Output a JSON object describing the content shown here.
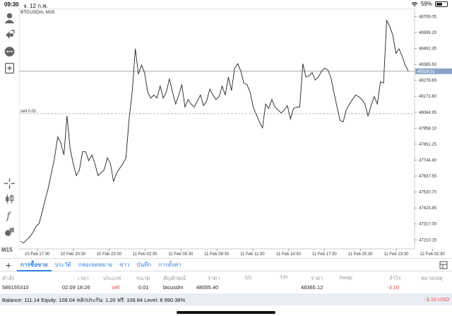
{
  "status": {
    "time": "09:30",
    "date": "จ. 12 ก.พ.",
    "battery": "59%",
    "battery_level": 0.59
  },
  "chart": {
    "symbol": "BTCUSDm, M15",
    "timeframe": "M15",
    "sell_line_label": "sell 0.01",
    "current_price": "48339.51",
    "colors": {
      "line": "#222222",
      "grid": "#eeeeee",
      "price_tag": "#8aa4c8",
      "level_line": "#bbbbbb"
    }
  },
  "chart_data": {
    "type": "line",
    "title": "",
    "ylim": [
      47150,
      48760
    ],
    "y_ticks": [
      "48706.05",
      "48599.20",
      "48492.35",
      "48385.50",
      "48278.65",
      "48171.80",
      "48064.95",
      "47958.10",
      "47851.25",
      "47744.40",
      "47637.55",
      "47530.70",
      "47423.85",
      "47317.00",
      "47210.15"
    ],
    "y_tick_values": [
      48706.05,
      48599.2,
      48492.35,
      48385.5,
      48278.65,
      48171.8,
      48064.95,
      47958.1,
      47851.25,
      47744.4,
      47637.55,
      47530.7,
      47423.85,
      47317.0,
      47210.15
    ],
    "x_ticks": [
      "10 Feb 17:30",
      "10 Feb 20:30",
      "10 Feb 23:30",
      "11 Feb 02:30",
      "11 Feb 05:30",
      "11 Feb 08:30",
      "11 Feb 11:30",
      "11 Feb 14:30",
      "11 Feb 17:30",
      "11 Feb 20:30",
      "11 Feb 23:30",
      "12 Feb 02:30"
    ],
    "current_price": 48339.51,
    "sell_level": 48055.4,
    "series": [
      {
        "values": [
          47200,
          47190,
          47210,
          47230,
          47260,
          47300,
          47320,
          47400,
          47480,
          47560,
          47660,
          47760,
          47900,
          47860,
          47780,
          48040,
          47820,
          47720,
          47640,
          47680,
          47800,
          47800,
          47740,
          47780,
          47720,
          47640,
          47660,
          47680,
          47760,
          47720,
          47600,
          47660,
          47690,
          47720,
          47760,
          48020,
          48200,
          48490,
          48320,
          48380,
          48330,
          48200,
          48160,
          48180,
          48160,
          48240,
          48160,
          48200,
          48290,
          48200,
          48120,
          48180,
          48250,
          48100,
          48150,
          48120,
          48100,
          48140,
          48180,
          48110,
          48140,
          48220,
          48180,
          48150,
          48170,
          48240,
          48180,
          48300,
          48210,
          48360,
          48390,
          48340,
          48260,
          48250,
          48200,
          48100,
          48050,
          48000,
          47960,
          48120,
          48090,
          48150,
          48100,
          48080,
          48060,
          48080,
          48110,
          48020,
          48090,
          48100,
          48100,
          48390,
          48300,
          48310,
          48330,
          48280,
          48300,
          48340,
          48360,
          48350,
          48300,
          48200,
          48100,
          48010,
          48000,
          48080,
          48120,
          48150,
          48180,
          48170,
          48150,
          48120,
          48040,
          48110,
          48170,
          48120,
          48270,
          48260,
          48680,
          48640,
          48580,
          48460,
          48490,
          48440,
          48380,
          48340
        ]
      }
    ]
  },
  "tabs": {
    "items": [
      "การซื้อขาย",
      "ประวัติ",
      "กล่องจดหมาย",
      "ข่าว",
      "บันทึก",
      "การตั้งค่า"
    ]
  },
  "table": {
    "headers": [
      "คำสั่ง",
      "เวลา",
      "ประเภท",
      "ขนาด",
      "สัญลักษณ์",
      "ราคา",
      "S/L",
      "T/P",
      "ราคา",
      "Swap",
      "กำไร",
      "หมายเหตุ"
    ],
    "rows": [
      {
        "order": "586155310",
        "time": "02.09 18:26",
        "type": "sell",
        "size": "0.01",
        "symbol": "btcusdm",
        "price": "48055.40",
        "sl": "",
        "tp": "",
        "cur_price": "48365.12",
        "swap": "",
        "profit": "-3.10",
        "comment": ""
      }
    ]
  },
  "balance": {
    "text": "Balance: 111.14 Equity: 108.04 หลักประกัน: 1.20 ฟรี: 106.84 Level: 8 990.38%",
    "profit": "-3.10  USD"
  }
}
